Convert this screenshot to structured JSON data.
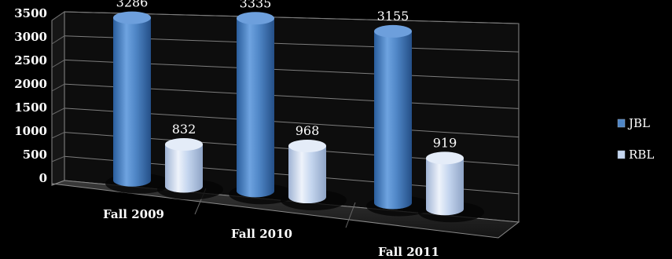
{
  "chart_data": {
    "type": "bar",
    "style": "3d-cylinder",
    "categories": [
      "Fall 2009",
      "Fall 2010",
      "Fall 2011"
    ],
    "series": [
      {
        "name": "JBL",
        "values": [
          3286,
          3335,
          3155
        ],
        "color": "#4f86c6"
      },
      {
        "name": "RBL",
        "values": [
          832,
          968,
          919
        ],
        "color": "#c5d6ef"
      }
    ],
    "yticks": [
      "0",
      "500",
      "1000",
      "1500",
      "2000",
      "2500",
      "3000",
      "3500"
    ],
    "ylim": [
      0,
      3500
    ],
    "grid": true,
    "legend": "right",
    "background": "#000000"
  }
}
